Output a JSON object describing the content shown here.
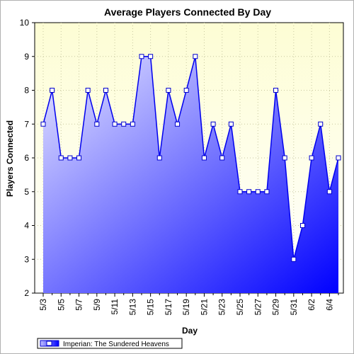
{
  "chart_data": {
    "type": "area",
    "title": "Average Players Connected By Day",
    "xlabel": "Day",
    "ylabel": "Players Connected",
    "ylim": [
      2,
      10
    ],
    "yticks": [
      2,
      3,
      4,
      5,
      6,
      7,
      8,
      9,
      10
    ],
    "x": [
      "5/3",
      "5/4",
      "5/5",
      "5/6",
      "5/7",
      "5/8",
      "5/9",
      "5/10",
      "5/11",
      "5/12",
      "5/13",
      "5/14",
      "5/15",
      "5/16",
      "5/17",
      "5/18",
      "5/19",
      "5/20",
      "5/21",
      "5/22",
      "5/23",
      "5/24",
      "5/25",
      "5/26",
      "5/27",
      "5/28",
      "5/29",
      "5/30",
      "5/31",
      "6/1",
      "6/2",
      "6/3",
      "6/4",
      "6/5"
    ],
    "x_tick_labels": [
      "5/3",
      "5/5",
      "5/7",
      "5/9",
      "5/11",
      "5/13",
      "5/15",
      "5/17",
      "5/19",
      "5/21",
      "5/23",
      "5/25",
      "5/27",
      "5/29",
      "5/31",
      "6/2",
      "6/4"
    ],
    "series": [
      {
        "name": "Imperian: The Sundered Heavens",
        "values": [
          7,
          8,
          6,
          6,
          6,
          8,
          7,
          8,
          7,
          7,
          7,
          9,
          9,
          6,
          8,
          7,
          8,
          9,
          6,
          7,
          6,
          7,
          5,
          5,
          5,
          5,
          8,
          6,
          3,
          4,
          6,
          7,
          5,
          6
        ]
      }
    ],
    "grid": true,
    "legend_position": "bottom-left",
    "colors": {
      "plot_bg_top": "#fdfdd4",
      "plot_bg_bottom": "#ffffff",
      "line": "#0000ee",
      "marker_fill": "#ffffff",
      "marker_stroke": "#0000cc",
      "fill_light": "#e8e8ff",
      "fill_dark": "#0000ff",
      "grid": "#c8c8a0"
    }
  }
}
